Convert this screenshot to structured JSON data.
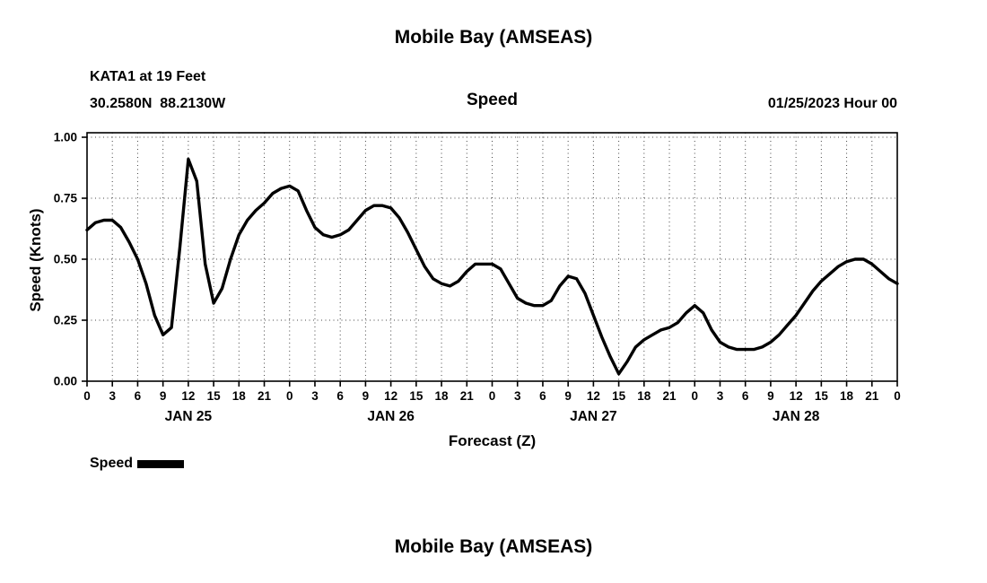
{
  "titles": {
    "top": "Mobile Bay (AMSEAS)",
    "bottom": "Mobile Bay (AMSEAS)"
  },
  "header": {
    "station": "KATA1 at 19 Feet",
    "coords": "30.2580N  88.2130W",
    "panel_title": "Speed",
    "run_label": "01/25/2023 Hour 00"
  },
  "legend": {
    "label": "Speed"
  },
  "chart_data": {
    "type": "line",
    "title": "Speed",
    "xlabel": "Forecast (Z)",
    "ylabel": "Speed (Knots)",
    "xlim": [
      0,
      96
    ],
    "ylim": [
      0,
      1.0
    ],
    "grid": "dotted",
    "legend_position": "bottom-left",
    "line_color": "#000000",
    "x_step_hours": 1,
    "yticks": [
      0,
      0.25,
      0.5,
      0.75,
      1.0
    ],
    "ytick_labels": [
      "0.00",
      "0.25",
      "0.50",
      "0.75",
      "1.00"
    ],
    "xticks": [
      0,
      3,
      6,
      9,
      12,
      15,
      18,
      21,
      24,
      27,
      30,
      33,
      36,
      39,
      42,
      45,
      48,
      51,
      54,
      57,
      60,
      63,
      66,
      69,
      72,
      75,
      78,
      81,
      84,
      87,
      90,
      93,
      96
    ],
    "xtick_labels": [
      "0",
      "3",
      "6",
      "9",
      "12",
      "15",
      "18",
      "21",
      "0",
      "3",
      "6",
      "9",
      "12",
      "15",
      "18",
      "21",
      "0",
      "3",
      "6",
      "9",
      "12",
      "15",
      "18",
      "21",
      "0",
      "3",
      "6",
      "9",
      "12",
      "15",
      "18",
      "21",
      "0"
    ],
    "day_labels": [
      {
        "text": "JAN 25",
        "hour": 12
      },
      {
        "text": "JAN 26",
        "hour": 36
      },
      {
        "text": "JAN 27",
        "hour": 60
      },
      {
        "text": "JAN 28",
        "hour": 84
      }
    ],
    "series": [
      {
        "name": "Speed",
        "values": [
          0.62,
          0.65,
          0.66,
          0.66,
          0.63,
          0.57,
          0.5,
          0.4,
          0.27,
          0.19,
          0.22,
          0.55,
          0.91,
          0.82,
          0.48,
          0.32,
          0.38,
          0.5,
          0.6,
          0.66,
          0.7,
          0.73,
          0.77,
          0.79,
          0.8,
          0.78,
          0.7,
          0.63,
          0.6,
          0.59,
          0.6,
          0.62,
          0.66,
          0.7,
          0.72,
          0.72,
          0.71,
          0.67,
          0.61,
          0.54,
          0.47,
          0.42,
          0.4,
          0.39,
          0.41,
          0.45,
          0.48,
          0.48,
          0.48,
          0.46,
          0.4,
          0.34,
          0.32,
          0.31,
          0.31,
          0.33,
          0.39,
          0.43,
          0.42,
          0.36,
          0.27,
          0.18,
          0.1,
          0.03,
          0.08,
          0.14,
          0.17,
          0.19,
          0.21,
          0.22,
          0.24,
          0.28,
          0.31,
          0.28,
          0.21,
          0.16,
          0.14,
          0.13,
          0.13,
          0.13,
          0.14,
          0.16,
          0.19,
          0.23,
          0.27,
          0.32,
          0.37,
          0.41,
          0.44,
          0.47,
          0.49,
          0.5,
          0.5,
          0.48,
          0.45,
          0.42,
          0.4
        ]
      }
    ]
  }
}
